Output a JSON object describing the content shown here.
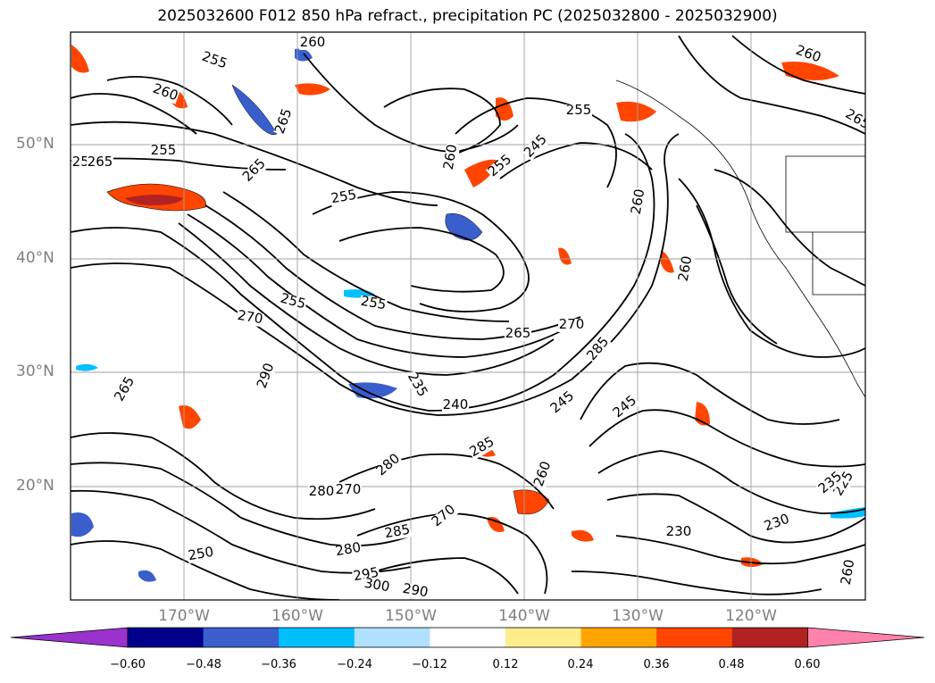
{
  "title": "2025032600 F012 850 hPa refract., precipitation PC (2025032800 - 2025032900)",
  "latitude_labels": [
    "50°N",
    "40°N",
    "30°N",
    "20°N"
  ],
  "longitude_labels": [
    "170°W",
    "160°W",
    "150°W",
    "140°W",
    "130°W",
    "120°W"
  ],
  "contour_labels": [
    "260",
    "255",
    "255",
    "265",
    "250",
    "260",
    "255",
    "260",
    "255",
    "265",
    "255",
    "265",
    "260",
    "245",
    "255",
    "265",
    "270",
    "270",
    "265",
    "290",
    "255",
    "285",
    "245",
    "240",
    "235",
    "260",
    "260",
    "225",
    "280",
    "270",
    "285",
    "280",
    "295",
    "300",
    "290",
    "230",
    "230",
    "235",
    "260",
    "250",
    "280",
    "285",
    "260",
    "245",
    "270",
    "265"
  ],
  "colorbar": {
    "ticks": [
      "−0.60",
      "−0.48",
      "−0.36",
      "−0.24",
      "−0.12",
      "0.12",
      "0.24",
      "0.36",
      "0.48",
      "0.60"
    ],
    "colors": [
      "#9a32cd",
      "#00008b",
      "#3a5fcd",
      "#00bfff",
      "#b0e2ff",
      "#ffffff",
      "#ffec8b",
      "#ffa500",
      "#ff4500",
      "#b22222",
      "#ff82ab"
    ]
  }
}
